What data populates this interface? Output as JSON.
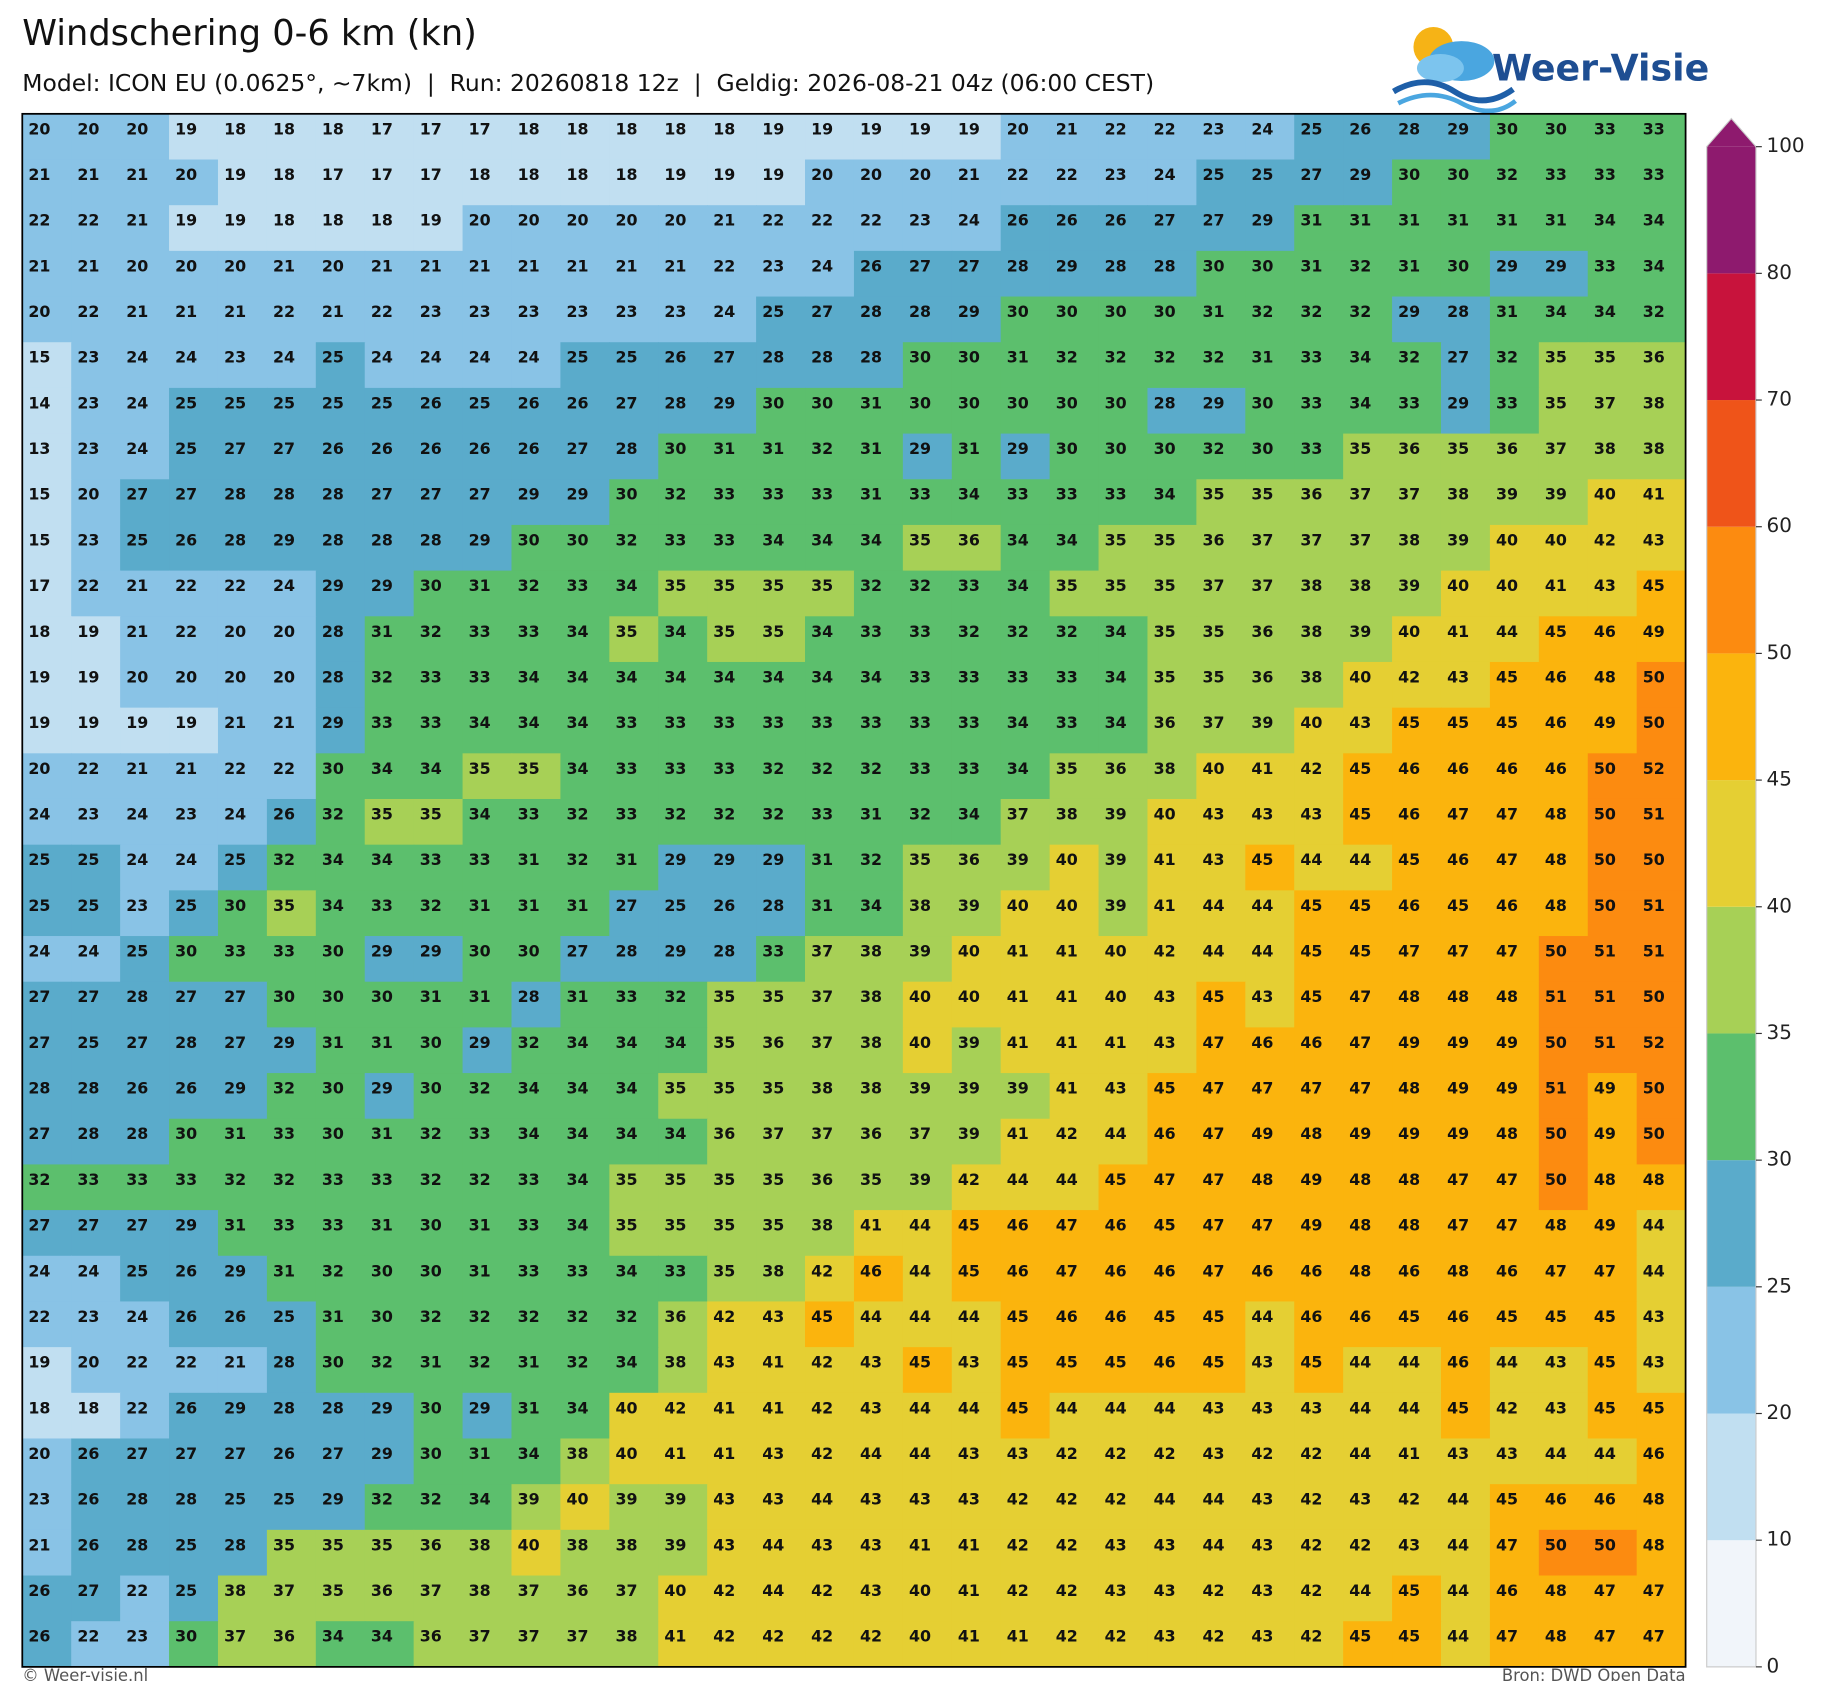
{
  "header": {
    "title": "Windschering 0-6 km (kn)",
    "subtitle": "Model: ICON EU (0.0625°, ~7km)  |  Run: 20260818 12z  |  Geldig: 2026-08-21 04z (06:00 CEST)",
    "logo": "Weer-Visie"
  },
  "grid": {
    "rows": [
      [
        20,
        20,
        20,
        19,
        18,
        18,
        18,
        17,
        17,
        17,
        18,
        18,
        18,
        18,
        18,
        19,
        19,
        19,
        19,
        19,
        20,
        21,
        22,
        22,
        23,
        24,
        25,
        26,
        28,
        29,
        30,
        30,
        33,
        33
      ],
      [
        21,
        21,
        21,
        20,
        19,
        18,
        17,
        17,
        17,
        18,
        18,
        18,
        18,
        19,
        19,
        19,
        20,
        20,
        20,
        21,
        22,
        22,
        23,
        24,
        25,
        25,
        27,
        29,
        30,
        30,
        32,
        33,
        33,
        33
      ],
      [
        22,
        22,
        21,
        19,
        19,
        18,
        18,
        18,
        19,
        20,
        20,
        20,
        20,
        20,
        21,
        22,
        22,
        22,
        23,
        24,
        26,
        26,
        26,
        27,
        27,
        29,
        31,
        31,
        31,
        31,
        31,
        31,
        34,
        34
      ],
      [
        21,
        21,
        20,
        20,
        20,
        21,
        20,
        21,
        21,
        21,
        21,
        21,
        21,
        21,
        22,
        23,
        24,
        26,
        27,
        27,
        28,
        29,
        28,
        28,
        30,
        30,
        31,
        32,
        31,
        30,
        29,
        29,
        33,
        34
      ],
      [
        20,
        22,
        21,
        21,
        21,
        22,
        21,
        22,
        23,
        23,
        23,
        23,
        23,
        23,
        24,
        25,
        27,
        28,
        28,
        29,
        30,
        30,
        30,
        30,
        31,
        32,
        32,
        32,
        29,
        28,
        31,
        34,
        34,
        32
      ],
      [
        15,
        23,
        24,
        24,
        23,
        24,
        25,
        24,
        24,
        24,
        24,
        25,
        25,
        26,
        27,
        28,
        28,
        28,
        30,
        30,
        31,
        32,
        32,
        32,
        32,
        31,
        33,
        34,
        32,
        27,
        32,
        35,
        35,
        36
      ],
      [
        14,
        23,
        24,
        25,
        25,
        25,
        25,
        25,
        26,
        25,
        26,
        26,
        27,
        28,
        29,
        30,
        30,
        31,
        30,
        30,
        30,
        30,
        30,
        28,
        29,
        30,
        33,
        34,
        33,
        29,
        33,
        35,
        37,
        38
      ],
      [
        13,
        23,
        24,
        25,
        27,
        27,
        26,
        26,
        26,
        26,
        26,
        27,
        28,
        30,
        31,
        31,
        32,
        31,
        29,
        31,
        29,
        30,
        30,
        30,
        32,
        30,
        33,
        35,
        36,
        35,
        36,
        37,
        38,
        38
      ],
      [
        15,
        20,
        27,
        27,
        28,
        28,
        28,
        27,
        27,
        27,
        29,
        29,
        30,
        32,
        33,
        33,
        33,
        31,
        33,
        34,
        33,
        33,
        33,
        34,
        35,
        35,
        36,
        37,
        37,
        38,
        39,
        39,
        40,
        41
      ],
      [
        15,
        23,
        25,
        26,
        28,
        29,
        28,
        28,
        28,
        29,
        30,
        30,
        32,
        33,
        33,
        34,
        34,
        34,
        35,
        36,
        34,
        34,
        35,
        35,
        36,
        37,
        37,
        37,
        38,
        39,
        40,
        40,
        42,
        43
      ],
      [
        17,
        22,
        21,
        22,
        22,
        24,
        29,
        29,
        30,
        31,
        32,
        33,
        34,
        35,
        35,
        35,
        35,
        32,
        32,
        33,
        34,
        35,
        35,
        35,
        37,
        37,
        38,
        38,
        39,
        40,
        40,
        41,
        43,
        45
      ],
      [
        18,
        19,
        21,
        22,
        20,
        20,
        28,
        31,
        32,
        33,
        33,
        34,
        35,
        34,
        35,
        35,
        34,
        33,
        33,
        32,
        32,
        32,
        34,
        35,
        35,
        36,
        38,
        39,
        40,
        41,
        44,
        45,
        46,
        49
      ],
      [
        19,
        19,
        20,
        20,
        20,
        20,
        28,
        32,
        33,
        33,
        34,
        34,
        34,
        34,
        34,
        34,
        34,
        34,
        33,
        33,
        33,
        33,
        34,
        35,
        35,
        36,
        38,
        40,
        42,
        43,
        45,
        46,
        48,
        50
      ],
      [
        19,
        19,
        19,
        19,
        21,
        21,
        29,
        33,
        33,
        34,
        34,
        34,
        33,
        33,
        33,
        33,
        33,
        33,
        33,
        33,
        34,
        33,
        34,
        36,
        37,
        39,
        40,
        43,
        45,
        45,
        45,
        46,
        49,
        50
      ],
      [
        20,
        22,
        21,
        21,
        22,
        22,
        30,
        34,
        34,
        35,
        35,
        34,
        33,
        33,
        33,
        32,
        32,
        32,
        33,
        33,
        34,
        35,
        36,
        38,
        40,
        41,
        42,
        45,
        46,
        46,
        46,
        46,
        50,
        52
      ],
      [
        24,
        23,
        24,
        23,
        24,
        26,
        32,
        35,
        35,
        34,
        33,
        32,
        33,
        32,
        32,
        32,
        33,
        31,
        32,
        34,
        37,
        38,
        39,
        40,
        43,
        43,
        43,
        45,
        46,
        47,
        47,
        48,
        50,
        51
      ],
      [
        25,
        25,
        24,
        24,
        25,
        32,
        34,
        34,
        33,
        33,
        31,
        32,
        31,
        29,
        29,
        29,
        31,
        32,
        35,
        36,
        39,
        40,
        39,
        41,
        43,
        45,
        44,
        44,
        45,
        46,
        47,
        48,
        50,
        50
      ],
      [
        25,
        25,
        23,
        25,
        30,
        35,
        34,
        33,
        32,
        31,
        31,
        31,
        27,
        25,
        26,
        28,
        31,
        34,
        38,
        39,
        40,
        40,
        39,
        41,
        44,
        44,
        45,
        45,
        46,
        45,
        46,
        48,
        50,
        51
      ],
      [
        24,
        24,
        25,
        30,
        33,
        33,
        30,
        29,
        29,
        30,
        30,
        27,
        28,
        29,
        28,
        33,
        37,
        38,
        39,
        40,
        41,
        41,
        40,
        42,
        44,
        44,
        45,
        45,
        47,
        47,
        47,
        50,
        51,
        51
      ],
      [
        27,
        27,
        28,
        27,
        27,
        30,
        30,
        30,
        31,
        31,
        28,
        31,
        33,
        32,
        35,
        35,
        37,
        38,
        40,
        40,
        41,
        41,
        40,
        43,
        45,
        43,
        45,
        47,
        48,
        48,
        48,
        51,
        51,
        50
      ],
      [
        27,
        25,
        27,
        28,
        27,
        29,
        31,
        31,
        30,
        29,
        32,
        34,
        34,
        34,
        35,
        36,
        37,
        38,
        40,
        39,
        41,
        41,
        41,
        43,
        47,
        46,
        46,
        47,
        49,
        49,
        49,
        50,
        51,
        52
      ],
      [
        28,
        28,
        26,
        26,
        29,
        32,
        30,
        29,
        30,
        32,
        34,
        34,
        34,
        35,
        35,
        35,
        38,
        38,
        39,
        39,
        39,
        41,
        43,
        45,
        47,
        47,
        47,
        47,
        48,
        49,
        49,
        51,
        49,
        50
      ],
      [
        27,
        28,
        28,
        30,
        31,
        33,
        30,
        31,
        32,
        33,
        34,
        34,
        34,
        34,
        36,
        37,
        37,
        36,
        37,
        39,
        41,
        42,
        44,
        46,
        47,
        49,
        48,
        49,
        49,
        49,
        48,
        50,
        49,
        50
      ],
      [
        32,
        33,
        33,
        33,
        32,
        32,
        33,
        33,
        32,
        32,
        33,
        34,
        35,
        35,
        35,
        35,
        36,
        35,
        39,
        42,
        44,
        44,
        45,
        47,
        47,
        48,
        49,
        48,
        48,
        47,
        47,
        50,
        48,
        48
      ],
      [
        27,
        27,
        27,
        29,
        31,
        33,
        33,
        31,
        30,
        31,
        33,
        34,
        35,
        35,
        35,
        35,
        38,
        41,
        44,
        45,
        46,
        47,
        46,
        45,
        47,
        47,
        49,
        48,
        48,
        47,
        47,
        48,
        49,
        44
      ],
      [
        24,
        24,
        25,
        26,
        29,
        31,
        32,
        30,
        30,
        31,
        33,
        33,
        34,
        33,
        35,
        38,
        42,
        46,
        44,
        45,
        46,
        47,
        46,
        46,
        47,
        46,
        46,
        48,
        46,
        48,
        46,
        47,
        47,
        44
      ],
      [
        22,
        23,
        24,
        26,
        26,
        25,
        31,
        30,
        32,
        32,
        32,
        32,
        32,
        36,
        42,
        43,
        45,
        44,
        44,
        44,
        45,
        46,
        46,
        45,
        45,
        44,
        46,
        46,
        45,
        46,
        45,
        45,
        45,
        43
      ],
      [
        19,
        20,
        22,
        22,
        21,
        28,
        30,
        32,
        31,
        32,
        31,
        32,
        34,
        38,
        43,
        41,
        42,
        43,
        45,
        43,
        45,
        45,
        45,
        46,
        45,
        43,
        45,
        44,
        44,
        46,
        44,
        43,
        45,
        43
      ],
      [
        18,
        18,
        22,
        26,
        29,
        28,
        28,
        29,
        30,
        29,
        31,
        34,
        40,
        42,
        41,
        41,
        42,
        43,
        44,
        44,
        45,
        44,
        44,
        44,
        43,
        43,
        43,
        44,
        44,
        45,
        42,
        43,
        45,
        45
      ],
      [
        20,
        26,
        27,
        27,
        27,
        26,
        27,
        29,
        30,
        31,
        34,
        38,
        40,
        41,
        41,
        43,
        42,
        44,
        44,
        43,
        43,
        42,
        42,
        42,
        43,
        42,
        42,
        44,
        41,
        43,
        43,
        44,
        44,
        46
      ],
      [
        23,
        26,
        28,
        28,
        25,
        25,
        29,
        32,
        32,
        34,
        39,
        40,
        39,
        39,
        43,
        43,
        44,
        43,
        43,
        43,
        42,
        42,
        42,
        44,
        44,
        43,
        42,
        43,
        42,
        44,
        45,
        46,
        46,
        48
      ],
      [
        21,
        26,
        28,
        25,
        28,
        35,
        35,
        35,
        36,
        38,
        40,
        38,
        38,
        39,
        43,
        44,
        43,
        43,
        41,
        41,
        42,
        42,
        43,
        43,
        44,
        43,
        42,
        42,
        43,
        44,
        47,
        50,
        50,
        48
      ],
      [
        26,
        27,
        22,
        25,
        38,
        37,
        35,
        36,
        37,
        38,
        37,
        36,
        37,
        40,
        42,
        44,
        42,
        43,
        40,
        41,
        42,
        42,
        43,
        43,
        42,
        43,
        42,
        44,
        45,
        44,
        46,
        48,
        47,
        47
      ],
      [
        26,
        22,
        23,
        30,
        37,
        36,
        34,
        34,
        36,
        37,
        37,
        37,
        38,
        41,
        42,
        42,
        42,
        42,
        40,
        41,
        41,
        42,
        42,
        43,
        42,
        43,
        42,
        45,
        45,
        44,
        47,
        48,
        47,
        47
      ]
    ]
  },
  "colorbar": {
    "levels": [
      0,
      10,
      20,
      25,
      30,
      35,
      40,
      45,
      50,
      60,
      70,
      80,
      100
    ],
    "colors": [
      "#f1f5fa",
      "#c1dff1",
      "#89c3e6",
      "#5aabcb",
      "#5cbf6d",
      "#a7d056",
      "#e5cf33",
      "#fbb40d",
      "#fc8b10",
      "#ef5419",
      "#c8133c",
      "#8e1a6e"
    ]
  },
  "footer": {
    "left": "© Weer-visie.nl",
    "right": "Bron: DWD Open Data"
  }
}
